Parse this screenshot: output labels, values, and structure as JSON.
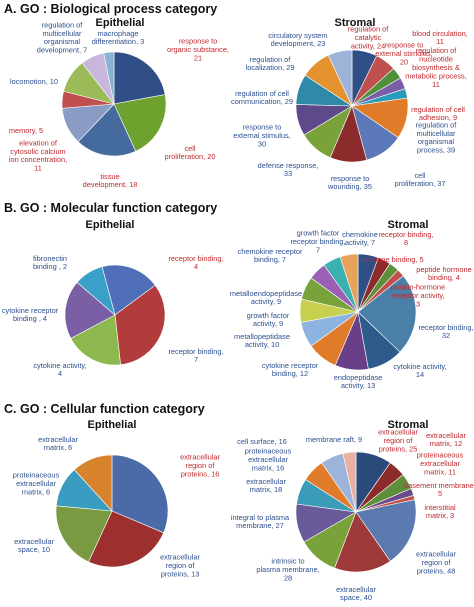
{
  "sections": [
    {
      "title": "A. GO : Biological process category"
    },
    {
      "title": "B. GO : Molecular function category"
    },
    {
      "title": "C. GO : Cellular function category"
    }
  ],
  "chart_data": [
    {
      "type": "pie",
      "section": 0,
      "title": "Epithelial",
      "slices": [
        {
          "label": "response to organic substance, 21",
          "value": 21,
          "color": "#2f4f86",
          "highlight": true
        },
        {
          "label": "cell proliferation, 20",
          "value": 20,
          "color": "#6fa12e",
          "highlight": true
        },
        {
          "label": "tissue development, 18",
          "value": 18,
          "color": "#456b9e",
          "highlight": true
        },
        {
          "label": "elevation of cytosolic calcium ion concentration, 11",
          "value": 11,
          "color": "#8a9bc4",
          "highlight": true
        },
        {
          "label": "memory, 5",
          "value": 5,
          "color": "#c0504d",
          "highlight": true
        },
        {
          "label": "locomotion, 10",
          "value": 10,
          "color": "#9bbb59",
          "highlight": false
        },
        {
          "label": "regulation of multicellular organismal development, 7",
          "value": 7,
          "color": "#c9b6dc",
          "highlight": false
        },
        {
          "label": "macrophage differentiation, 3",
          "value": 3,
          "color": "#86b3d1",
          "highlight": false
        }
      ]
    },
    {
      "type": "pie",
      "section": 0,
      "title": "Stromal",
      "slices": [
        {
          "label": "regulation of catalytic activity, 24",
          "value": 24,
          "color": "#2f4f86",
          "highlight": true
        },
        {
          "label": "response to external stimulus, 20",
          "value": 20,
          "color": "#c0504d",
          "highlight": true
        },
        {
          "label": "blood circulation, 11",
          "value": 11,
          "color": "#4e8f3a",
          "highlight": true
        },
        {
          "label": "regulation of nucleotide biosynthesis & metabolic process, 11",
          "value": 11,
          "color": "#7b5ea7",
          "highlight": true
        },
        {
          "label": "regulation of cell adhesion, 9",
          "value": 9,
          "color": "#2a9bb8",
          "highlight": true
        },
        {
          "label": "regulation of multicellular organismal process, 39",
          "value": 39,
          "color": "#e07b2a",
          "highlight": false
        },
        {
          "label": "cell proliferation, 37",
          "value": 37,
          "color": "#5b78b8",
          "highlight": false
        },
        {
          "label": "response to wounding, 35",
          "value": 35,
          "color": "#8b2b2b",
          "highlight": false
        },
        {
          "label": "defense response, 33",
          "value": 33,
          "color": "#7aa23a",
          "highlight": false
        },
        {
          "label": "response to external stimulus, 30",
          "value": 30,
          "color": "#5e4a8a",
          "highlight": false
        },
        {
          "label": "regulation of cell communication, 29",
          "value": 29,
          "color": "#2e8aa6",
          "highlight": false
        },
        {
          "label": "regulation of localization, 29",
          "value": 29,
          "color": "#e3922e",
          "highlight": false
        },
        {
          "label": "circulatory system development, 23",
          "value": 23,
          "color": "#9db4d8",
          "highlight": false
        }
      ]
    },
    {
      "type": "pie",
      "section": 1,
      "title": "Epithelial",
      "slices": [
        {
          "label": "receptor binding, 4",
          "value": 4,
          "color": "#4f6fb8",
          "highlight": true
        },
        {
          "label": "receptor binding, 7",
          "value": 7,
          "color": "#b23b3b",
          "highlight": false
        },
        {
          "label": "cytokine activity, 4",
          "value": 4,
          "color": "#8cb84e",
          "highlight": false
        },
        {
          "label": "cytokine receptor binding , 4",
          "value": 4,
          "color": "#7a5fa5",
          "highlight": false
        },
        {
          "label": "fibronectin binding , 2",
          "value": 2,
          "color": "#3aa0c8",
          "highlight": false
        }
      ]
    },
    {
      "type": "pie",
      "section": 1,
      "title": "Stromal",
      "slices": [
        {
          "label": "receptor binding, 8",
          "value": 8,
          "color": "#2f4f86",
          "highlight": true
        },
        {
          "label": "hormone binding, 5",
          "value": 5,
          "color": "#8b2b2b",
          "highlight": true
        },
        {
          "label": "peptide hormone binding, 4",
          "value": 4,
          "color": "#5e8f3a",
          "highlight": true
        },
        {
          "label": "protein-hormone receptor activity, 3",
          "value": 3,
          "color": "#c0504d",
          "highlight": true
        },
        {
          "label": "receptor binding, 32",
          "value": 32,
          "color": "#4a7fa8",
          "highlight": false
        },
        {
          "label": "cytokine activity, 14",
          "value": 14,
          "color": "#2e5c8a",
          "highlight": false
        },
        {
          "label": "endopeptidase activity, 13",
          "value": 13,
          "color": "#6a3f8a",
          "highlight": false
        },
        {
          "label": "cytokine receptor binding, 12",
          "value": 12,
          "color": "#e07b2a",
          "highlight": false
        },
        {
          "label": "metallopeptidase activity, 10",
          "value": 10,
          "color": "#8db4e0",
          "highlight": false
        },
        {
          "label": "growth factor activity, 9",
          "value": 9,
          "color": "#c7cf4e",
          "highlight": false
        },
        {
          "label": "metalloendopeptidase activity, 9",
          "value": 9,
          "color": "#7aa23a",
          "highlight": false
        },
        {
          "label": "chemokine receptor binding, 7",
          "value": 7,
          "color": "#9b5fb5",
          "highlight": false
        },
        {
          "label": "growth factor receptor binding, 7",
          "value": 7,
          "color": "#3ab0b0",
          "highlight": false
        },
        {
          "label": "chemokine activity, 7",
          "value": 7,
          "color": "#e8a35a",
          "highlight": false
        }
      ]
    },
    {
      "type": "pie",
      "section": 2,
      "title": "Epithelial",
      "slices": [
        {
          "label": "extracellular region of proteins, 16",
          "value": 16,
          "color": "#4a6aa8",
          "highlight": true
        },
        {
          "label": "extracellular region of proteins, 13",
          "value": 13,
          "color": "#9e2f2f",
          "highlight": false
        },
        {
          "label": "extracellular space, 10",
          "value": 10,
          "color": "#7a9a42",
          "highlight": false
        },
        {
          "label": "proteinaceous extracellular matrix, 6",
          "value": 6,
          "color": "#3a9cc0",
          "highlight": false
        },
        {
          "label": "extracellular matrix, 6",
          "value": 6,
          "color": "#d8832e",
          "highlight": false
        }
      ]
    },
    {
      "type": "pie",
      "section": 2,
      "title": "Stromal",
      "slices": [
        {
          "label": "extracellular region of proteins, 25",
          "value": 25,
          "color": "#2a4a7a",
          "highlight": true
        },
        {
          "label": "extracellular matrix, 12",
          "value": 12,
          "color": "#8b2b2b",
          "highlight": true
        },
        {
          "label": "proteinaceous extracellular matrix, 11",
          "value": 11,
          "color": "#5e8f3a",
          "highlight": true
        },
        {
          "label": "basement membrane, 5",
          "value": 5,
          "color": "#6a4a8a",
          "highlight": true
        },
        {
          "label": "interstitial matrix, 3",
          "value": 3,
          "color": "#c0504d",
          "highlight": true
        },
        {
          "label": "extracellular region of proteins, 48",
          "value": 48,
          "color": "#5a7ab0",
          "highlight": false
        },
        {
          "label": "extracellular space, 40",
          "value": 40,
          "color": "#9e3a3a",
          "highlight": false
        },
        {
          "label": "intrinsic to plasma membrane, 28",
          "value": 28,
          "color": "#7aa23a",
          "highlight": false
        },
        {
          "label": "integral to plasma membrane, 27",
          "value": 27,
          "color": "#6a5a9a",
          "highlight": false
        },
        {
          "label": "extracellular matrix, 18",
          "value": 18,
          "color": "#3a9cb8",
          "highlight": false
        },
        {
          "label": "proteinaceous extracellular matrix, 16",
          "value": 16,
          "color": "#e07b2a",
          "highlight": false
        },
        {
          "label": "cell surface, 16",
          "value": 16,
          "color": "#9db4d8",
          "highlight": false
        },
        {
          "label": "membrane raft, 9",
          "value": 9,
          "color": "#e8b0a0",
          "highlight": false
        }
      ]
    }
  ]
}
